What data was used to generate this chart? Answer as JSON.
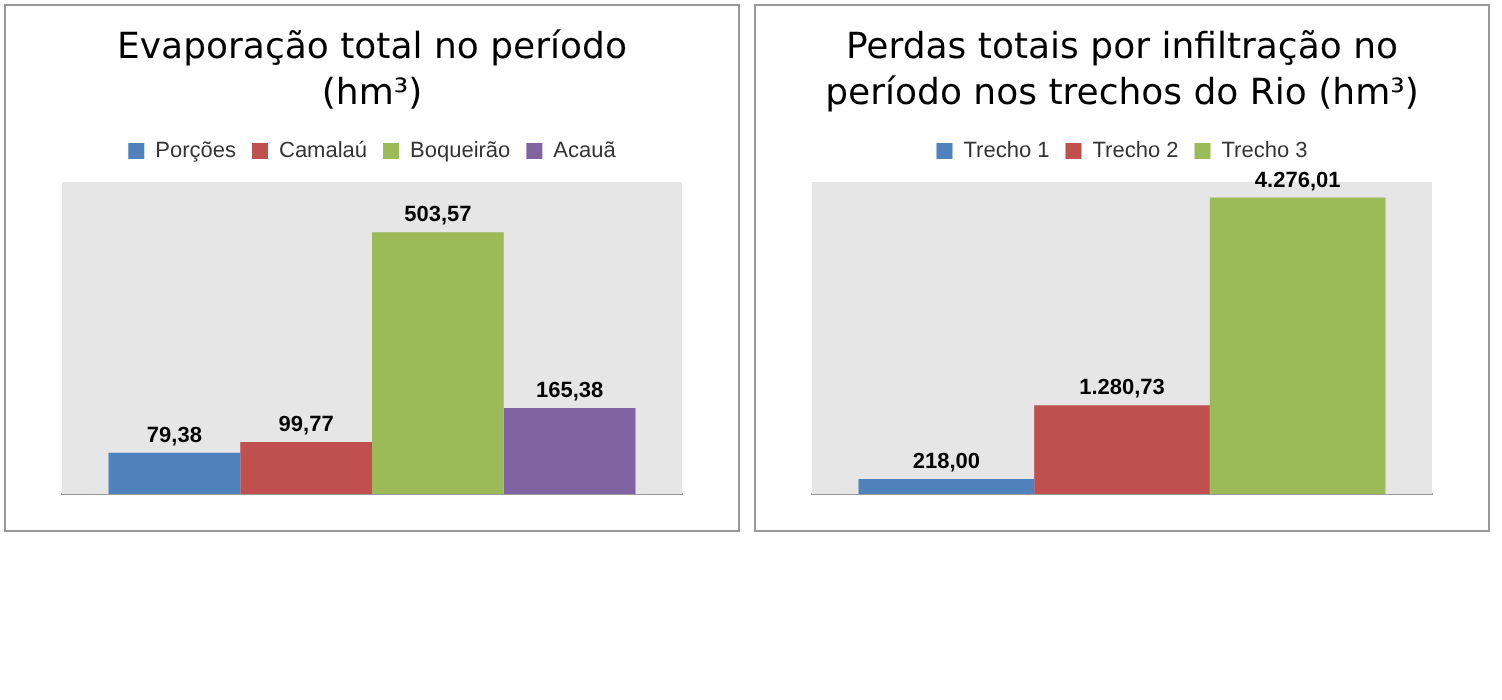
{
  "chart_data": [
    {
      "type": "bar",
      "title": "Evaporação total no período (hm³)",
      "categories": [
        null
      ],
      "legend": "top",
      "grid": false,
      "series": [
        {
          "name": "Porções",
          "color": "#4f81bd",
          "values": [
            79.38
          ],
          "value_labels": [
            "79,38"
          ]
        },
        {
          "name": "Camalaú",
          "color": "#c0504d",
          "values": [
            99.77
          ],
          "value_labels": [
            "99,77"
          ]
        },
        {
          "name": "Boqueirão",
          "color": "#9bbb59",
          "values": [
            503.57
          ],
          "value_labels": [
            "503,57"
          ]
        },
        {
          "name": "Acauã",
          "color": "#8064a2",
          "values": [
            165.38
          ],
          "value_labels": [
            "165,38"
          ]
        }
      ]
    },
    {
      "type": "bar",
      "title": "Perdas totais por infiltração no período nos trechos do Rio (hm³)",
      "categories": [
        null
      ],
      "legend": "top",
      "grid": false,
      "series": [
        {
          "name": "Trecho 1",
          "color": "#4f81bd",
          "values": [
            218.0
          ],
          "value_labels": [
            "218,00"
          ]
        },
        {
          "name": "Trecho 2",
          "color": "#c0504d",
          "values": [
            1280.73
          ],
          "value_labels": [
            "1.280,73"
          ]
        },
        {
          "name": "Trecho 3",
          "color": "#9bbb59",
          "values": [
            4276.01
          ],
          "value_labels": [
            "4.276,01"
          ]
        }
      ]
    }
  ]
}
